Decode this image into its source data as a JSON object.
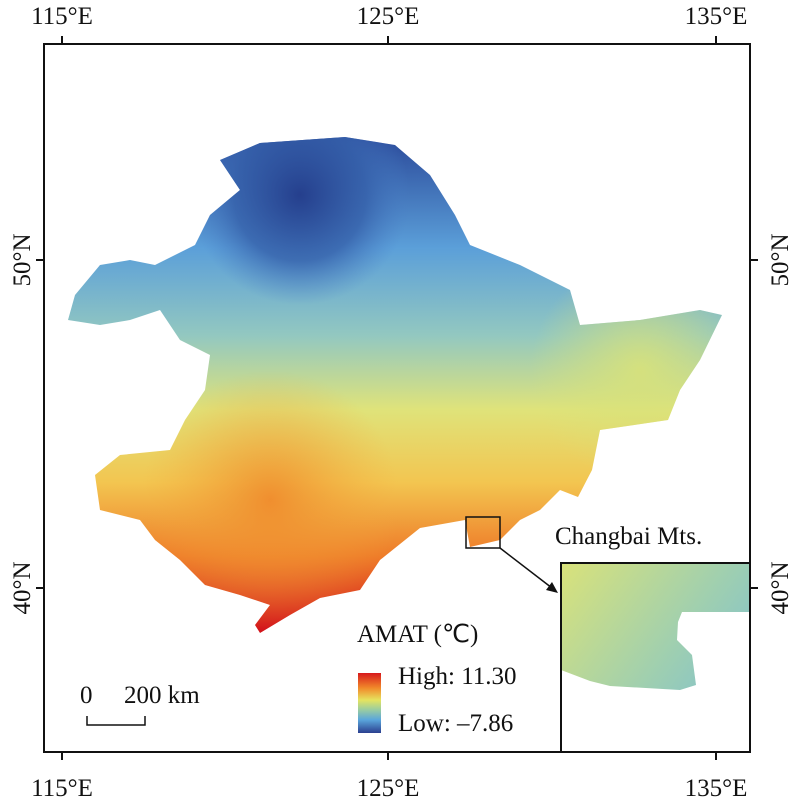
{
  "axes": {
    "top_labels": [
      "115°E",
      "125°E",
      "135°E"
    ],
    "bottom_labels": [
      "115°E",
      "125°E",
      "135°E"
    ],
    "left_labels": [
      "50°N",
      "40°N"
    ],
    "right_labels": [
      "50°N",
      "40°N"
    ]
  },
  "legend": {
    "title": "AMAT (℃)",
    "high_label": "High: 11.30",
    "low_label": "Low: –7.86",
    "high_value": 11.3,
    "low_value": -7.86,
    "colors": [
      "#d7191c",
      "#f18a2a",
      "#e6e35f",
      "#9fcf9c",
      "#5aa6dc",
      "#2b3f8f"
    ]
  },
  "scale_bar": {
    "zero_label": "0",
    "distance_label": "200 km"
  },
  "inset": {
    "title": "Changbai Mts."
  }
}
